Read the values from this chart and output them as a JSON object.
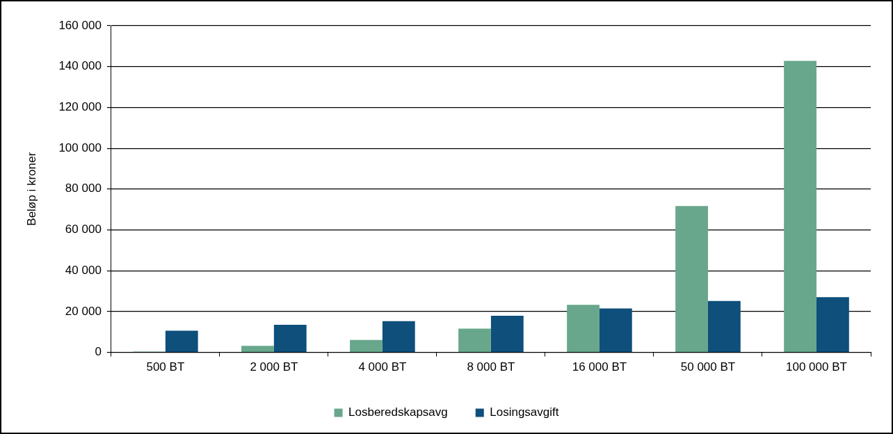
{
  "chart_data": {
    "type": "bar",
    "ylabel": "Beløp i kroner",
    "categories": [
      "500 BT",
      "2 000 BT",
      "4 000 BT",
      "8 000 BT",
      "16 000 BT",
      "50 000 BT",
      "100 000 BT"
    ],
    "series": [
      {
        "name": "Losberedskapsavg",
        "color": "#68a78c",
        "values": [
          400,
          3200,
          6100,
          11600,
          23300,
          71700,
          142800
        ]
      },
      {
        "name": "Losingsavgift",
        "color": "#0e4f7b",
        "values": [
          10600,
          13500,
          15300,
          17900,
          21500,
          25200,
          27000
        ]
      }
    ],
    "ylim": [
      0,
      160000
    ],
    "yticks": [
      {
        "value": 0,
        "label": "0"
      },
      {
        "value": 20000,
        "label": "20 000"
      },
      {
        "value": 40000,
        "label": "40 000"
      },
      {
        "value": 60000,
        "label": "60 000"
      },
      {
        "value": 80000,
        "label": "80 000"
      },
      {
        "value": 100000,
        "label": "100 000"
      },
      {
        "value": 120000,
        "label": "120 000"
      },
      {
        "value": 140000,
        "label": "140 000"
      },
      {
        "value": 160000,
        "label": "160 000"
      }
    ],
    "grid": "y",
    "legend": "bottom"
  }
}
